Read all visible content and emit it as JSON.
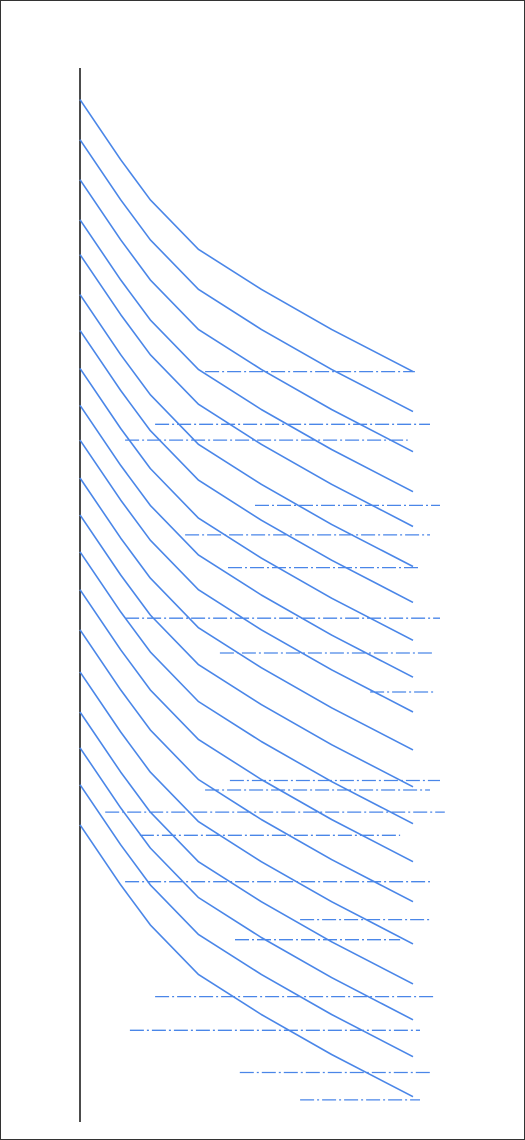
{
  "chart_data": {
    "type": "line",
    "color": "#4a86e8",
    "xlim": [
      0,
      100
    ],
    "ylim": [
      0,
      100
    ],
    "x": [
      0,
      11,
      19,
      32,
      49,
      68,
      90
    ],
    "series": [
      {
        "values": [
          97.0,
          91.3,
          87.5,
          82.8,
          79.0,
          75.2,
          71.2
        ]
      },
      {
        "values": [
          93.2,
          87.5,
          83.7,
          79.0,
          75.2,
          71.4,
          67.4
        ]
      },
      {
        "values": [
          89.4,
          83.7,
          79.9,
          75.2,
          71.4,
          67.6,
          63.6
        ]
      },
      {
        "values": [
          85.6,
          79.9,
          76.1,
          71.4,
          67.6,
          63.8,
          59.8
        ]
      },
      {
        "values": [
          82.3,
          76.6,
          72.8,
          68.1,
          64.3,
          60.5,
          56.5
        ]
      },
      {
        "values": [
          78.5,
          72.8,
          69.0,
          64.3,
          60.5,
          56.7,
          52.7
        ]
      },
      {
        "values": [
          75.1,
          69.4,
          65.6,
          60.9,
          57.1,
          53.3,
          49.3
        ]
      },
      {
        "values": [
          71.5,
          65.8,
          62.0,
          57.3,
          53.5,
          49.7,
          45.7
        ]
      },
      {
        "values": [
          68.0,
          62.3,
          58.5,
          53.8,
          50.0,
          46.2,
          42.2
        ]
      },
      {
        "values": [
          64.7,
          59.0,
          55.2,
          50.5,
          46.7,
          42.9,
          38.9
        ]
      },
      {
        "values": [
          61.1,
          55.4,
          51.6,
          46.9,
          43.1,
          39.3,
          35.3
        ]
      },
      {
        "values": [
          57.6,
          51.9,
          48.1,
          43.4,
          39.6,
          35.8,
          31.8
        ]
      },
      {
        "values": [
          54.1,
          48.4,
          44.6,
          39.9,
          36.1,
          32.3,
          28.3
        ]
      },
      {
        "values": [
          50.5,
          44.8,
          41.0,
          36.3,
          32.5,
          28.7,
          24.7
        ]
      },
      {
        "values": [
          46.7,
          41.0,
          37.2,
          32.5,
          28.7,
          24.9,
          20.9
        ]
      },
      {
        "values": [
          42.7,
          37.0,
          33.2,
          28.5,
          24.7,
          20.9,
          16.9
        ]
      },
      {
        "values": [
          38.9,
          33.2,
          29.4,
          24.7,
          20.9,
          17.1,
          13.1
        ]
      },
      {
        "values": [
          35.5,
          29.8,
          26.0,
          21.3,
          17.5,
          13.7,
          9.7
        ]
      },
      {
        "values": [
          32.0,
          26.3,
          22.5,
          17.8,
          14.0,
          10.2,
          6.2
        ]
      },
      {
        "values": [
          28.2,
          22.5,
          18.7,
          14.0,
          10.2,
          6.4,
          2.4
        ]
      }
    ],
    "segments": [
      {
        "x": [
          33.8,
          90.5
        ],
        "values": [
          71.2,
          71.2
        ]
      },
      {
        "x": [
          20.3,
          94.6
        ],
        "values": [
          66.2,
          66.2
        ]
      },
      {
        "x": [
          12.2,
          88.6
        ],
        "values": [
          64.7,
          64.7
        ]
      },
      {
        "x": [
          47.3,
          97.3
        ],
        "values": [
          58.5,
          58.5
        ]
      },
      {
        "x": [
          28.4,
          94.6
        ],
        "values": [
          55.7,
          55.7
        ]
      },
      {
        "x": [
          40.0,
          91.4
        ],
        "values": [
          52.6,
          52.6
        ]
      },
      {
        "x": [
          12.2,
          97.3
        ],
        "values": [
          47.8,
          47.8
        ]
      },
      {
        "x": [
          37.8,
          95.9
        ],
        "values": [
          44.5,
          44.5
        ]
      },
      {
        "x": [
          78.4,
          95.9
        ],
        "values": [
          40.8,
          40.8
        ]
      },
      {
        "x": [
          40.5,
          97.3
        ],
        "values": [
          32.4,
          32.4
        ]
      },
      {
        "x": [
          33.8,
          94.6
        ],
        "values": [
          31.5,
          31.5
        ]
      },
      {
        "x": [
          6.8,
          98.6
        ],
        "values": [
          29.4,
          29.4
        ]
      },
      {
        "x": [
          16.2,
          86.5
        ],
        "values": [
          27.2,
          27.2
        ]
      },
      {
        "x": [
          12.2,
          94.6
        ],
        "values": [
          22.8,
          22.8
        ]
      },
      {
        "x": [
          59.5,
          94.6
        ],
        "values": [
          19.2,
          19.2
        ]
      },
      {
        "x": [
          41.9,
          86.5
        ],
        "values": [
          17.3,
          17.3
        ]
      },
      {
        "x": [
          20.3,
          95.9
        ],
        "values": [
          11.9,
          11.9
        ]
      },
      {
        "x": [
          13.5,
          91.9
        ],
        "values": [
          8.7,
          8.7
        ]
      },
      {
        "x": [
          43.2,
          94.6
        ],
        "values": [
          4.7,
          4.7
        ]
      },
      {
        "x": [
          59.5,
          91.9
        ],
        "values": [
          2.1,
          2.1
        ]
      }
    ]
  }
}
